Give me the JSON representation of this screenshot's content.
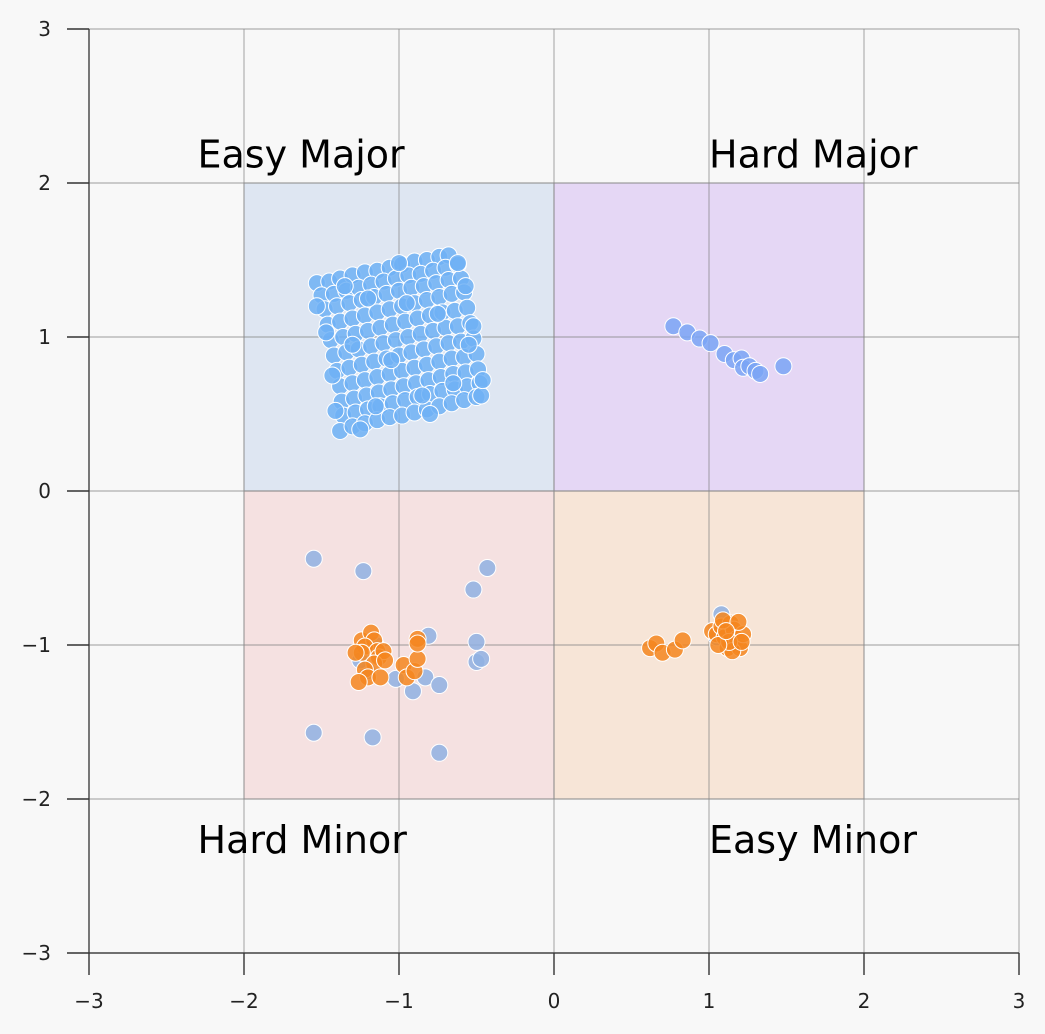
{
  "chart_data": {
    "type": "scatter",
    "title": "",
    "xlabel": "",
    "ylabel": "",
    "xlim": [
      -3,
      3
    ],
    "ylim": [
      -3,
      3
    ],
    "x_ticks": [
      -3,
      -2,
      -1,
      0,
      1,
      2,
      3
    ],
    "y_ticks": [
      -3,
      -2,
      -1,
      0,
      1,
      2,
      3
    ],
    "x_tick_labels": [
      "−3",
      "−2",
      "−1",
      "0",
      "1",
      "2",
      "3"
    ],
    "y_tick_labels": [
      "−3",
      "−2",
      "−1",
      "0",
      "1",
      "2",
      "3"
    ],
    "grid": true,
    "regions": [
      {
        "label": "Easy Major",
        "x_range": [
          -2,
          0
        ],
        "y_range": [
          0,
          2
        ],
        "color": "#aec7e8",
        "label_anchor": "top-left"
      },
      {
        "label": "Hard Major",
        "x_range": [
          0,
          2
        ],
        "y_range": [
          0,
          2
        ],
        "color": "#c39bf0",
        "label_anchor": "top-right"
      },
      {
        "label": "Hard Minor",
        "x_range": [
          -2,
          0
        ],
        "y_range": [
          -2,
          0
        ],
        "color": "#f2b8b8",
        "label_anchor": "bottom-left"
      },
      {
        "label": "Easy Minor",
        "x_range": [
          0,
          2
        ],
        "y_range": [
          -2,
          0
        ],
        "color": "#f5c49a",
        "label_anchor": "bottom-right"
      }
    ],
    "series": [
      {
        "color": "#6eb0f5",
        "description_cluster": "dense rotated square cluster centered near (-0.95, 0.95)",
        "points": [
          [
            -1.53,
            1.35
          ],
          [
            -1.45,
            1.36
          ],
          [
            -1.38,
            1.38
          ],
          [
            -1.3,
            1.4
          ],
          [
            -1.22,
            1.42
          ],
          [
            -1.14,
            1.43
          ],
          [
            -1.06,
            1.45
          ],
          [
            -0.98,
            1.47
          ],
          [
            -0.9,
            1.49
          ],
          [
            -0.82,
            1.5
          ],
          [
            -0.74,
            1.52
          ],
          [
            -0.68,
            1.53
          ],
          [
            -1.5,
            1.27
          ],
          [
            -1.42,
            1.28
          ],
          [
            -1.34,
            1.3
          ],
          [
            -1.26,
            1.32
          ],
          [
            -1.18,
            1.34
          ],
          [
            -1.1,
            1.36
          ],
          [
            -1.02,
            1.38
          ],
          [
            -0.94,
            1.4
          ],
          [
            -0.86,
            1.41
          ],
          [
            -0.78,
            1.43
          ],
          [
            -0.7,
            1.45
          ],
          [
            -0.62,
            1.47
          ],
          [
            -1.48,
            1.18
          ],
          [
            -1.4,
            1.2
          ],
          [
            -1.32,
            1.22
          ],
          [
            -1.24,
            1.24
          ],
          [
            -1.16,
            1.26
          ],
          [
            -1.08,
            1.28
          ],
          [
            -1.0,
            1.3
          ],
          [
            -0.92,
            1.32
          ],
          [
            -0.84,
            1.33
          ],
          [
            -0.76,
            1.35
          ],
          [
            -0.68,
            1.37
          ],
          [
            -0.6,
            1.38
          ],
          [
            -1.46,
            1.08
          ],
          [
            -1.38,
            1.1
          ],
          [
            -1.3,
            1.12
          ],
          [
            -1.22,
            1.14
          ],
          [
            -1.14,
            1.16
          ],
          [
            -1.06,
            1.18
          ],
          [
            -0.98,
            1.2
          ],
          [
            -0.9,
            1.22
          ],
          [
            -0.82,
            1.24
          ],
          [
            -0.74,
            1.26
          ],
          [
            -0.66,
            1.28
          ],
          [
            -0.58,
            1.29
          ],
          [
            -1.44,
            0.98
          ],
          [
            -1.36,
            1.0
          ],
          [
            -1.28,
            1.02
          ],
          [
            -1.2,
            1.04
          ],
          [
            -1.12,
            1.06
          ],
          [
            -1.04,
            1.08
          ],
          [
            -0.96,
            1.1
          ],
          [
            -0.88,
            1.12
          ],
          [
            -0.8,
            1.14
          ],
          [
            -0.72,
            1.16
          ],
          [
            -0.64,
            1.17
          ],
          [
            -0.56,
            1.19
          ],
          [
            -1.42,
            0.88
          ],
          [
            -1.34,
            0.9
          ],
          [
            -1.26,
            0.92
          ],
          [
            -1.18,
            0.94
          ],
          [
            -1.1,
            0.96
          ],
          [
            -1.02,
            0.98
          ],
          [
            -0.94,
            1.0
          ],
          [
            -0.86,
            1.02
          ],
          [
            -0.78,
            1.04
          ],
          [
            -0.7,
            1.06
          ],
          [
            -0.62,
            1.07
          ],
          [
            -0.54,
            1.09
          ],
          [
            -1.4,
            0.78
          ],
          [
            -1.32,
            0.8
          ],
          [
            -1.24,
            0.82
          ],
          [
            -1.16,
            0.84
          ],
          [
            -1.08,
            0.86
          ],
          [
            -1.0,
            0.88
          ],
          [
            -0.92,
            0.9
          ],
          [
            -0.84,
            0.92
          ],
          [
            -0.76,
            0.94
          ],
          [
            -0.68,
            0.96
          ],
          [
            -0.6,
            0.97
          ],
          [
            -0.52,
            0.99
          ],
          [
            -1.38,
            0.68
          ],
          [
            -1.3,
            0.7
          ],
          [
            -1.22,
            0.72
          ],
          [
            -1.14,
            0.74
          ],
          [
            -1.06,
            0.76
          ],
          [
            -0.98,
            0.78
          ],
          [
            -0.9,
            0.8
          ],
          [
            -0.82,
            0.82
          ],
          [
            -0.74,
            0.84
          ],
          [
            -0.66,
            0.86
          ],
          [
            -0.58,
            0.87
          ],
          [
            -0.5,
            0.89
          ],
          [
            -1.37,
            0.58
          ],
          [
            -1.29,
            0.6
          ],
          [
            -1.21,
            0.62
          ],
          [
            -1.13,
            0.64
          ],
          [
            -1.05,
            0.66
          ],
          [
            -0.97,
            0.68
          ],
          [
            -0.89,
            0.7
          ],
          [
            -0.81,
            0.72
          ],
          [
            -0.73,
            0.74
          ],
          [
            -0.65,
            0.76
          ],
          [
            -0.57,
            0.77
          ],
          [
            -0.49,
            0.79
          ],
          [
            -1.36,
            0.49
          ],
          [
            -1.28,
            0.51
          ],
          [
            -1.2,
            0.53
          ],
          [
            -1.12,
            0.55
          ],
          [
            -1.04,
            0.57
          ],
          [
            -0.96,
            0.59
          ],
          [
            -0.88,
            0.61
          ],
          [
            -0.8,
            0.63
          ],
          [
            -0.72,
            0.65
          ],
          [
            -0.64,
            0.66
          ],
          [
            -0.56,
            0.68
          ],
          [
            -0.48,
            0.7
          ],
          [
            -1.38,
            0.39
          ],
          [
            -1.3,
            0.42
          ],
          [
            -1.22,
            0.44
          ],
          [
            -1.14,
            0.46
          ],
          [
            -1.06,
            0.48
          ],
          [
            -0.98,
            0.49
          ],
          [
            -0.9,
            0.51
          ],
          [
            -0.82,
            0.53
          ],
          [
            -0.74,
            0.55
          ],
          [
            -0.66,
            0.57
          ],
          [
            -0.58,
            0.59
          ],
          [
            -0.5,
            0.61
          ],
          [
            -1.53,
            1.2
          ],
          [
            -1.47,
            1.03
          ],
          [
            -1.43,
            0.75
          ],
          [
            -1.41,
            0.52
          ],
          [
            -0.47,
            0.62
          ],
          [
            -0.46,
            0.72
          ],
          [
            -0.52,
            1.07
          ],
          [
            -0.57,
            1.33
          ],
          [
            -0.62,
            1.48
          ],
          [
            -1.0,
            1.48
          ],
          [
            -1.25,
            0.4
          ],
          [
            -0.8,
            0.5
          ],
          [
            -1.2,
            1.25
          ],
          [
            -1.05,
            0.85
          ],
          [
            -0.85,
            0.62
          ],
          [
            -0.75,
            1.15
          ],
          [
            -1.3,
            0.95
          ],
          [
            -0.65,
            0.7
          ],
          [
            -1.15,
            0.55
          ],
          [
            -0.95,
            1.22
          ],
          [
            -1.35,
            1.33
          ],
          [
            -0.55,
            0.95
          ]
        ]
      },
      {
        "color": "#7aa5f5",
        "description_cluster": "diagonal line of points in Hard Major",
        "points": [
          [
            0.77,
            1.07
          ],
          [
            0.86,
            1.03
          ],
          [
            0.94,
            0.99
          ],
          [
            1.01,
            0.96
          ],
          [
            1.1,
            0.89
          ],
          [
            1.16,
            0.85
          ],
          [
            1.21,
            0.86
          ],
          [
            1.22,
            0.8
          ],
          [
            1.26,
            0.81
          ],
          [
            1.3,
            0.78
          ],
          [
            1.33,
            0.76
          ],
          [
            1.48,
            0.81
          ]
        ]
      },
      {
        "color": "#8fb0e2",
        "description_cluster": "scattered blue points in Hard Minor and Easy Minor",
        "points": [
          [
            -1.55,
            -0.44
          ],
          [
            -1.23,
            -0.52
          ],
          [
            -0.43,
            -0.5
          ],
          [
            -0.52,
            -0.64
          ],
          [
            -0.81,
            -0.94
          ],
          [
            -0.5,
            -0.98
          ],
          [
            -0.5,
            -1.11
          ],
          [
            -0.47,
            -1.09
          ],
          [
            -1.2,
            -1.17
          ],
          [
            -0.83,
            -1.21
          ],
          [
            -0.74,
            -1.26
          ],
          [
            -0.91,
            -1.3
          ],
          [
            -1.02,
            -1.22
          ],
          [
            -1.55,
            -1.57
          ],
          [
            -1.17,
            -1.6
          ],
          [
            -0.74,
            -1.7
          ],
          [
            -1.15,
            -1.0
          ],
          [
            -1.25,
            -1.1
          ],
          [
            1.08,
            -0.8
          ],
          [
            1.12,
            -0.9
          ],
          [
            1.18,
            -1.0
          ],
          [
            1.05,
            -0.95
          ]
        ]
      },
      {
        "color": "#f5861f",
        "description_cluster": "orange points in Hard Minor and Easy Minor",
        "points": [
          [
            -1.24,
            -0.97
          ],
          [
            -1.18,
            -0.92
          ],
          [
            -1.16,
            -0.97
          ],
          [
            -1.22,
            -1.01
          ],
          [
            -1.14,
            -1.04
          ],
          [
            -1.13,
            -1.08
          ],
          [
            -1.1,
            -1.04
          ],
          [
            -1.24,
            -1.05
          ],
          [
            -1.16,
            -1.12
          ],
          [
            -1.22,
            -1.16
          ],
          [
            -1.2,
            -1.21
          ],
          [
            -1.26,
            -1.24
          ],
          [
            -1.12,
            -1.21
          ],
          [
            -1.09,
            -1.1
          ],
          [
            -0.97,
            -1.13
          ],
          [
            -0.95,
            -1.21
          ],
          [
            -0.9,
            -1.17
          ],
          [
            -0.88,
            -1.09
          ],
          [
            -0.88,
            -0.96
          ],
          [
            -0.88,
            -0.99
          ],
          [
            -1.28,
            -1.05
          ],
          [
            0.62,
            -1.02
          ],
          [
            0.66,
            -0.99
          ],
          [
            0.7,
            -1.05
          ],
          [
            0.78,
            -1.03
          ],
          [
            0.83,
            -0.97
          ],
          [
            1.02,
            -0.91
          ],
          [
            1.05,
            -0.93
          ],
          [
            1.08,
            -0.88
          ],
          [
            1.1,
            -0.95
          ],
          [
            1.12,
            -1.02
          ],
          [
            1.14,
            -0.86
          ],
          [
            1.16,
            -0.9
          ],
          [
            1.18,
            -0.96
          ],
          [
            1.2,
            -1.02
          ],
          [
            1.22,
            -0.93
          ],
          [
            1.15,
            -1.04
          ],
          [
            1.09,
            -0.84
          ],
          [
            1.13,
            -0.98
          ],
          [
            1.19,
            -0.85
          ],
          [
            1.06,
            -1.0
          ],
          [
            1.21,
            -0.98
          ],
          [
            1.11,
            -0.91
          ]
        ]
      }
    ]
  }
}
